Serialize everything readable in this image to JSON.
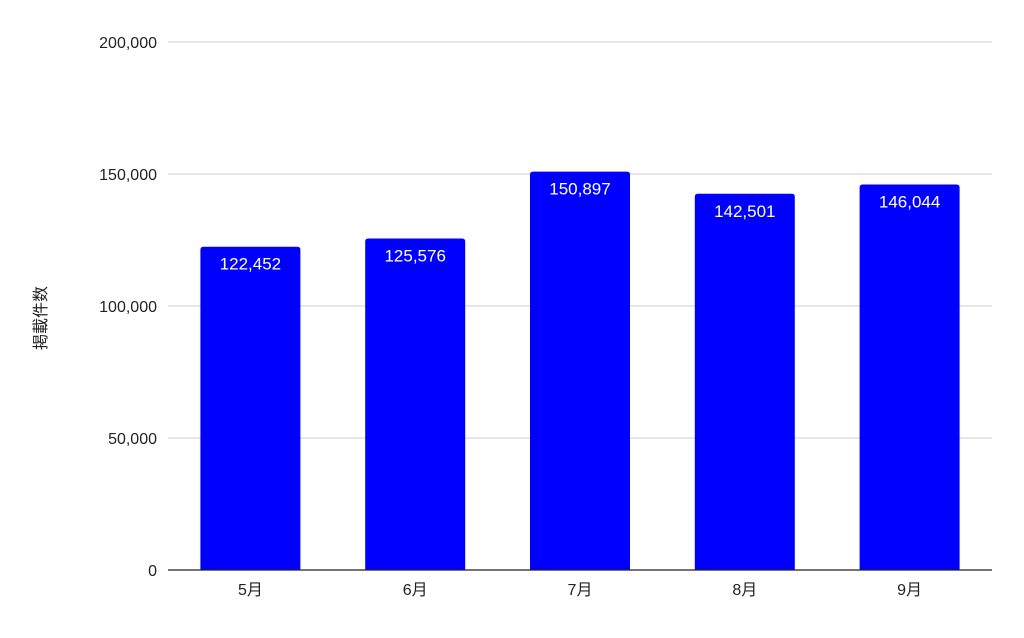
{
  "chart_data": {
    "type": "bar",
    "title": "",
    "xlabel": "",
    "ylabel": "掲載件数",
    "categories": [
      "5月",
      "6月",
      "7月",
      "8月",
      "9月"
    ],
    "values": [
      122452,
      125576,
      150897,
      142501,
      146044
    ],
    "data_labels": [
      "122,452",
      "125,576",
      "150,897",
      "142,501",
      "146,044"
    ],
    "ylim": [
      0,
      200000
    ],
    "yticks": [
      0,
      50000,
      100000,
      150000,
      200000
    ],
    "ytick_labels": [
      "0",
      "50,000",
      "100,000",
      "150,000",
      "200,000"
    ],
    "grid": true,
    "legend": "none",
    "bar_color": "#0000ff",
    "grid_color": "#cccccc",
    "axis_color": "#222222"
  }
}
